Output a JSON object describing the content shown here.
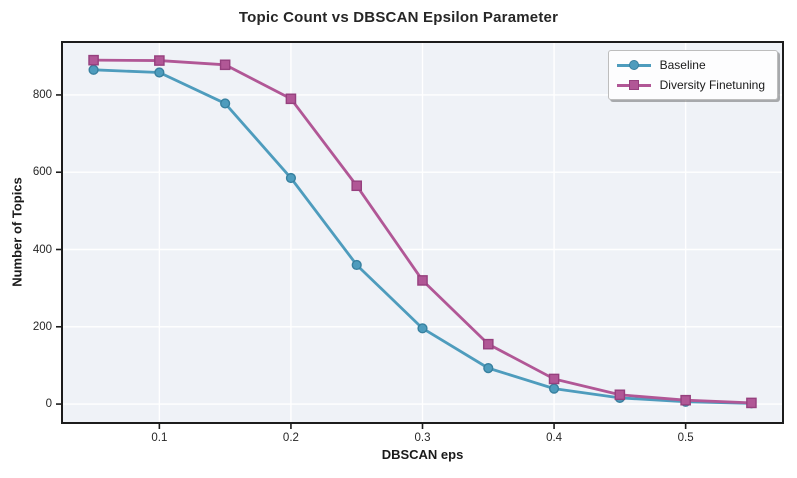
{
  "chart_data": {
    "type": "line",
    "title": "Topic Count vs DBSCAN Epsilon Parameter",
    "xlabel": "DBSCAN eps",
    "ylabel": "Number of Topics",
    "x": [
      0.05,
      0.1,
      0.15,
      0.2,
      0.25,
      0.3,
      0.35,
      0.4,
      0.45,
      0.5,
      0.55
    ],
    "series": [
      {
        "name": "Baseline",
        "marker": "circle",
        "color": "#4E9CBD",
        "edge_color": "#37809F",
        "values": [
          865,
          858,
          778,
          585,
          360,
          196,
          93,
          40,
          16,
          6,
          2
        ]
      },
      {
        "name": "Diversity Finetuning",
        "marker": "square",
        "color": "#B15796",
        "edge_color": "#96407E",
        "values": [
          890,
          889,
          878,
          790,
          565,
          320,
          155,
          65,
          24,
          10,
          3
        ]
      }
    ],
    "xticks": [
      0.1,
      0.2,
      0.3,
      0.4,
      0.5
    ],
    "xtick_labels": [
      "0.1",
      "0.2",
      "0.3",
      "0.4",
      "0.5"
    ],
    "yticks": [
      0,
      200,
      400,
      600,
      800
    ],
    "ytick_labels": [
      "0",
      "200",
      "400",
      "600",
      "800"
    ],
    "xlim": [
      0.026,
      0.574
    ],
    "ylim": [
      -49,
      937
    ],
    "grid": true,
    "legend_position": "upper right",
    "colors": {
      "figure_bg": "#FFFFFF",
      "plot_bg": "#EFF2F7",
      "grid": "#FFFFFF",
      "spine": "#1C1C1C",
      "text": "#262626"
    }
  }
}
